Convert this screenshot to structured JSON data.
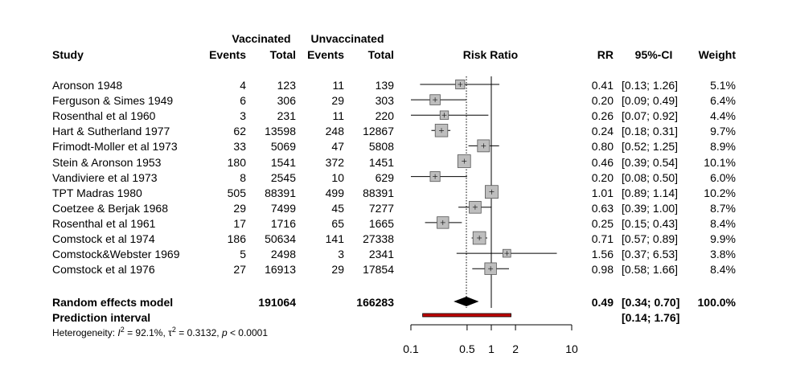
{
  "header": {
    "study": "Study",
    "vaccinated": "Vaccinated",
    "unvaccinated": "Unvaccinated",
    "events": "Events",
    "total": "Total",
    "risk_ratio": "Risk Ratio",
    "rr": "RR",
    "ci": "95%-CI",
    "weight": "Weight"
  },
  "studies": [
    {
      "study": "Aronson 1948",
      "ev_v": "4",
      "tot_v": "123",
      "ev_u": "11",
      "tot_u": "139",
      "rr": "0.41",
      "ci": "[0.13; 1.26]",
      "weight": "5.1%"
    },
    {
      "study": "Ferguson & Simes 1949",
      "ev_v": "6",
      "tot_v": "306",
      "ev_u": "29",
      "tot_u": "303",
      "rr": "0.20",
      "ci": "[0.09; 0.49]",
      "weight": "6.4%"
    },
    {
      "study": "Rosenthal et al 1960",
      "ev_v": "3",
      "tot_v": "231",
      "ev_u": "11",
      "tot_u": "220",
      "rr": "0.26",
      "ci": "[0.07; 0.92]",
      "weight": "4.4%"
    },
    {
      "study": "Hart & Sutherland 1977",
      "ev_v": "62",
      "tot_v": "13598",
      "ev_u": "248",
      "tot_u": "12867",
      "rr": "0.24",
      "ci": "[0.18; 0.31]",
      "weight": "9.7%"
    },
    {
      "study": "Frimodt-Moller et al 1973",
      "ev_v": "33",
      "tot_v": "5069",
      "ev_u": "47",
      "tot_u": "5808",
      "rr": "0.80",
      "ci": "[0.52; 1.25]",
      "weight": "8.9%"
    },
    {
      "study": "Stein & Aronson 1953",
      "ev_v": "180",
      "tot_v": "1541",
      "ev_u": "372",
      "tot_u": "1451",
      "rr": "0.46",
      "ci": "[0.39; 0.54]",
      "weight": "10.1%"
    },
    {
      "study": "Vandiviere et al 1973",
      "ev_v": "8",
      "tot_v": "2545",
      "ev_u": "10",
      "tot_u": "629",
      "rr": "0.20",
      "ci": "[0.08; 0.50]",
      "weight": "6.0%"
    },
    {
      "study": "TPT Madras 1980",
      "ev_v": "505",
      "tot_v": "88391",
      "ev_u": "499",
      "tot_u": "88391",
      "rr": "1.01",
      "ci": "[0.89; 1.14]",
      "weight": "10.2%"
    },
    {
      "study": "Coetzee & Berjak 1968",
      "ev_v": "29",
      "tot_v": "7499",
      "ev_u": "45",
      "tot_u": "7277",
      "rr": "0.63",
      "ci": "[0.39; 1.00]",
      "weight": "8.7%"
    },
    {
      "study": "Rosenthal et al 1961",
      "ev_v": "17",
      "tot_v": "1716",
      "ev_u": "65",
      "tot_u": "1665",
      "rr": "0.25",
      "ci": "[0.15; 0.43]",
      "weight": "8.4%"
    },
    {
      "study": "Comstock et al 1974",
      "ev_v": "186",
      "tot_v": "50634",
      "ev_u": "141",
      "tot_u": "27338",
      "rr": "0.71",
      "ci": "[0.57; 0.89]",
      "weight": "9.9%"
    },
    {
      "study": "Comstock&Webster 1969",
      "ev_v": "5",
      "tot_v": "2498",
      "ev_u": "3",
      "tot_u": "2341",
      "rr": "1.56",
      "ci": "[0.37; 6.53]",
      "weight": "3.8%"
    },
    {
      "study": "Comstock et al 1976",
      "ev_v": "27",
      "tot_v": "16913",
      "ev_u": "29",
      "tot_u": "17854",
      "rr": "0.98",
      "ci": "[0.58; 1.66]",
      "weight": "8.4%"
    }
  ],
  "random": {
    "label": "Random effects model",
    "tot_v": "191064",
    "tot_u": "166283",
    "rr": "0.49",
    "ci": "[0.34; 0.70]",
    "weight": "100.0%"
  },
  "prediction": {
    "label": "Prediction interval",
    "ci": "[0.14; 1.76]"
  },
  "heterogeneity": {
    "prefix": "Heterogeneity: ",
    "i2_letter": "I",
    "i2_rest": " = 92.1%, ",
    "tau_letter": "τ",
    "tau_rest": " = 0.3132, ",
    "p_letter": "p",
    "p_rest": " < 0.0001"
  },
  "chart_data": {
    "type": "forest",
    "xscale": "log",
    "xlim": [
      0.1,
      10
    ],
    "xticks": [
      0.1,
      0.5,
      1,
      2,
      10
    ],
    "xticklabels": [
      "0.1",
      "0.5",
      "1",
      "2",
      "10"
    ],
    "reference_line": 1,
    "summary_line": 0.49,
    "points": [
      {
        "rr": 0.41,
        "lo": 0.13,
        "hi": 1.26,
        "w": 5.1
      },
      {
        "rr": 0.2,
        "lo": 0.09,
        "hi": 0.49,
        "w": 6.4
      },
      {
        "rr": 0.26,
        "lo": 0.07,
        "hi": 0.92,
        "w": 4.4
      },
      {
        "rr": 0.24,
        "lo": 0.18,
        "hi": 0.31,
        "w": 9.7
      },
      {
        "rr": 0.8,
        "lo": 0.52,
        "hi": 1.25,
        "w": 8.9
      },
      {
        "rr": 0.46,
        "lo": 0.39,
        "hi": 0.54,
        "w": 10.1
      },
      {
        "rr": 0.2,
        "lo": 0.08,
        "hi": 0.5,
        "w": 6.0
      },
      {
        "rr": 1.01,
        "lo": 0.89,
        "hi": 1.14,
        "w": 10.2
      },
      {
        "rr": 0.63,
        "lo": 0.39,
        "hi": 1.0,
        "w": 8.7
      },
      {
        "rr": 0.25,
        "lo": 0.15,
        "hi": 0.43,
        "w": 8.4
      },
      {
        "rr": 0.71,
        "lo": 0.57,
        "hi": 0.89,
        "w": 9.9
      },
      {
        "rr": 1.56,
        "lo": 0.37,
        "hi": 6.53,
        "w": 3.8
      },
      {
        "rr": 0.98,
        "lo": 0.58,
        "hi": 1.66,
        "w": 8.4
      }
    ],
    "summary": {
      "rr": 0.49,
      "lo": 0.34,
      "hi": 0.7
    },
    "prediction": {
      "lo": 0.14,
      "hi": 1.76
    },
    "colors": {
      "box": "#bebebe",
      "prediction": "#c00000",
      "diamond": "#000000"
    }
  }
}
